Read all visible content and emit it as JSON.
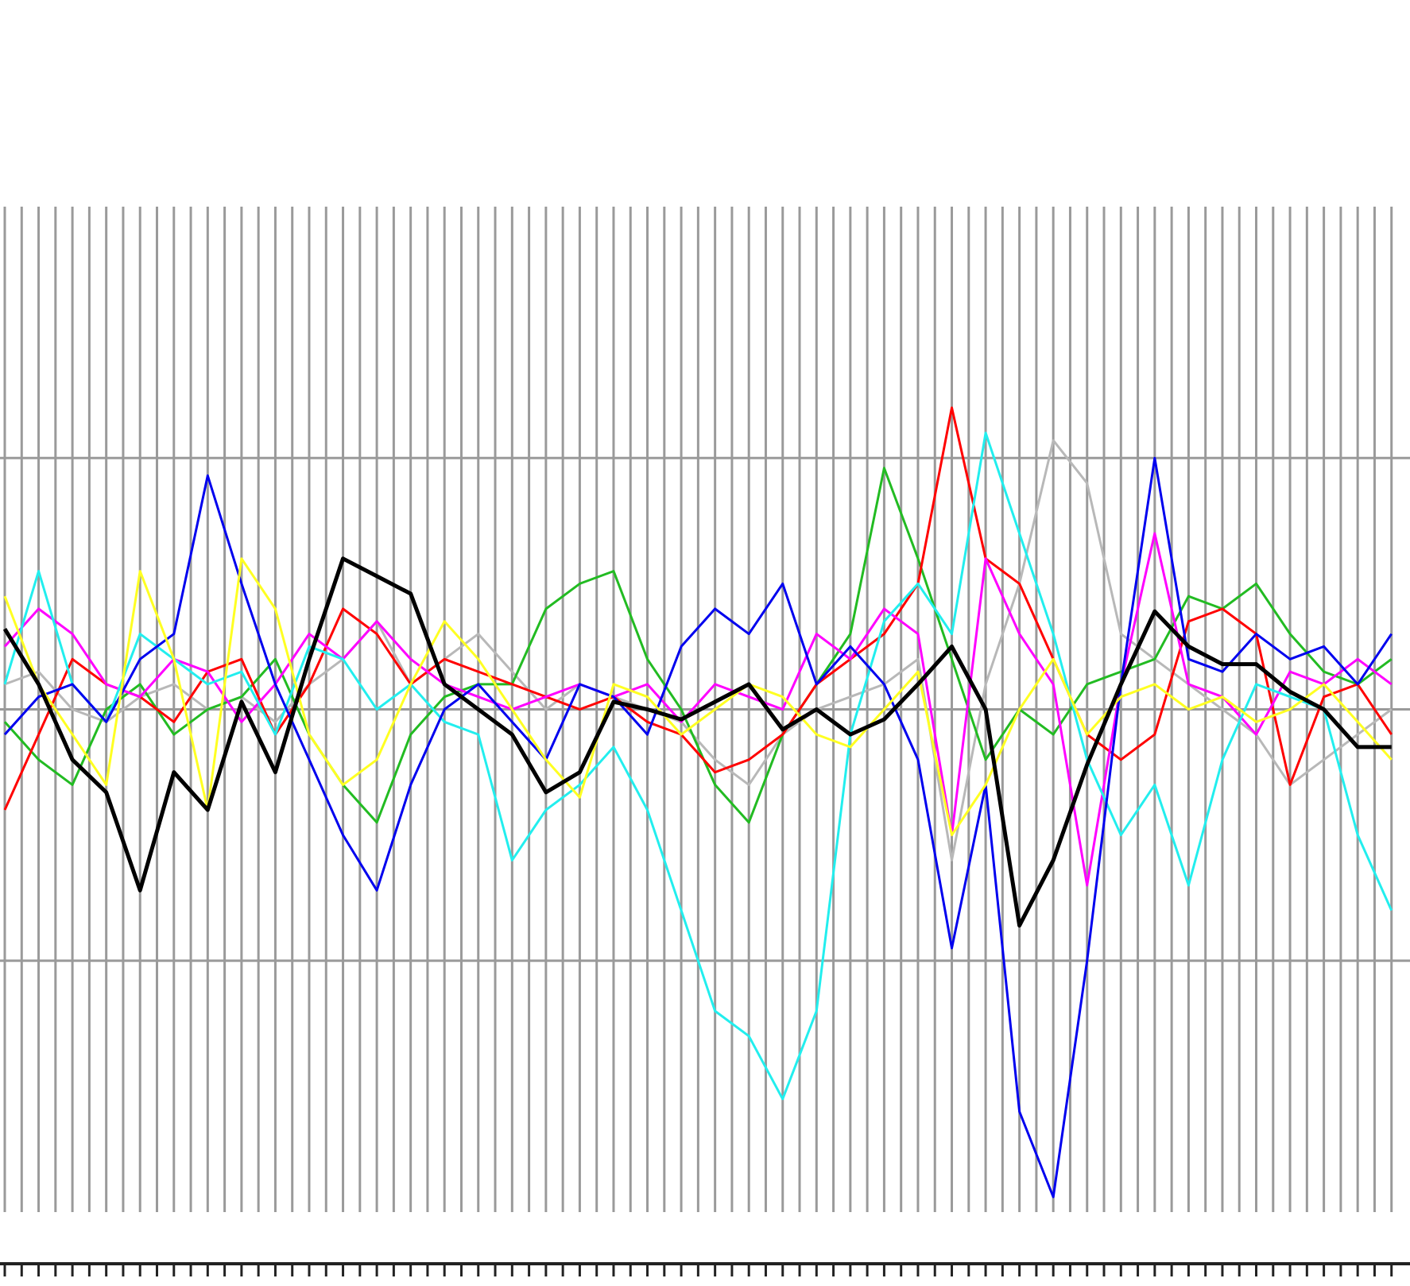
{
  "chart_data": {
    "type": "line",
    "x": [
      0,
      2,
      4,
      6,
      8,
      10,
      12,
      14,
      16,
      18,
      20,
      22,
      24,
      26,
      28,
      30,
      32,
      34,
      36,
      38,
      40,
      42,
      44,
      46,
      48,
      50,
      52,
      54,
      56,
      58,
      60,
      62,
      64,
      66,
      68,
      70,
      72,
      74,
      76,
      78,
      80,
      82
    ],
    "xlim": [
      0,
      83
    ],
    "ylim": [
      -2,
      2
    ],
    "xticks": [
      0,
      1,
      2,
      3,
      4,
      5,
      6,
      7,
      8,
      9,
      10,
      11,
      12,
      13,
      14,
      15,
      16,
      17,
      18,
      19,
      20,
      21,
      22,
      23,
      24,
      25,
      26,
      27,
      28,
      29,
      30,
      31,
      32,
      33,
      34,
      35,
      36,
      37,
      38,
      39,
      40,
      41,
      42,
      43,
      44,
      45,
      46,
      47,
      48,
      49,
      50,
      51,
      52,
      53,
      54,
      55,
      56,
      57,
      58,
      59,
      60,
      61,
      62,
      63,
      64,
      65,
      66,
      67,
      68,
      69,
      70,
      71,
      72,
      73,
      74,
      75,
      76,
      77,
      78,
      79,
      80,
      81,
      82
    ],
    "yticks": [
      -1,
      0,
      1
    ],
    "grid": true,
    "series": [
      {
        "color": "#b8b8b8",
        "line_width": 3,
        "values": [
          0.1,
          0.15,
          0,
          -0.05,
          0.05,
          0.1,
          0,
          0.05,
          -0.05,
          0.1,
          0.2,
          0.35,
          0.1,
          0.2,
          0.3,
          0.15,
          0,
          0.1,
          0.05,
          0,
          -0.05,
          -0.2,
          -0.3,
          -0.1,
          0,
          0.05,
          0.1,
          0.2,
          -0.6,
          0.1,
          0.5,
          1.07,
          0.9,
          0.3,
          0.2,
          0.1,
          0,
          -0.1,
          -0.3,
          -0.2,
          -0.1,
          0
        ]
      },
      {
        "color": "#22bb22",
        "line_width": 3,
        "values": [
          -0.05,
          -0.2,
          -0.3,
          0,
          0.1,
          -0.1,
          0,
          0.05,
          0.2,
          -0.1,
          -0.3,
          -0.45,
          -0.1,
          0.05,
          0.1,
          0.1,
          0.4,
          0.5,
          0.55,
          0.2,
          0,
          -0.3,
          -0.45,
          -0.1,
          0.1,
          0.3,
          0.96,
          0.6,
          0.2,
          -0.2,
          0,
          -0.1,
          0.1,
          0.15,
          0.2,
          0.45,
          0.4,
          0.5,
          0.3,
          0.15,
          0.1,
          0.2
        ]
      },
      {
        "color": "#ff0000",
        "line_width": 3,
        "values": [
          -0.4,
          -0.1,
          0.2,
          0.1,
          0.05,
          -0.05,
          0.15,
          0.2,
          -0.1,
          0.1,
          0.4,
          0.3,
          0.1,
          0.2,
          0.15,
          0.1,
          0.05,
          0,
          0.05,
          -0.05,
          -0.1,
          -0.25,
          -0.2,
          -0.1,
          0.1,
          0.2,
          0.3,
          0.5,
          1.2,
          0.6,
          0.5,
          0.2,
          -0.1,
          -0.2,
          -0.1,
          0.35,
          0.4,
          0.3,
          -0.3,
          0.05,
          0.1,
          -0.1
        ]
      },
      {
        "color": "#ff00ff",
        "line_width": 3,
        "values": [
          0.25,
          0.4,
          0.3,
          0.1,
          0.05,
          0.2,
          0.15,
          -0.05,
          0.1,
          0.3,
          0.2,
          0.35,
          0.2,
          0.1,
          0.05,
          0,
          0.05,
          0.1,
          0.05,
          0.1,
          -0.05,
          0.1,
          0.05,
          0,
          0.3,
          0.2,
          0.4,
          0.3,
          -0.5,
          0.6,
          0.3,
          0.1,
          -0.7,
          0.1,
          0.7,
          0.1,
          0.05,
          -0.1,
          0.15,
          0.1,
          0.2,
          0.1
        ]
      },
      {
        "color": "#22eeee",
        "line_width": 3,
        "values": [
          0.1,
          0.55,
          0.1,
          -0.05,
          0.3,
          0.2,
          0.1,
          0.15,
          -0.1,
          0.25,
          0.2,
          0,
          0.1,
          -0.05,
          -0.1,
          -0.6,
          -0.4,
          -0.3,
          -0.15,
          -0.4,
          -0.8,
          -1.2,
          -1.3,
          -1.55,
          -1.2,
          -0.1,
          0.35,
          0.5,
          0.3,
          1.1,
          0.7,
          0.3,
          -0.2,
          -0.5,
          -0.3,
          -0.7,
          -0.2,
          0.1,
          0.05,
          0,
          -0.5,
          -0.8
        ]
      },
      {
        "color": "#0000ee",
        "line_width": 3,
        "values": [
          -0.1,
          0.05,
          0.1,
          -0.05,
          0.2,
          0.3,
          0.93,
          0.5,
          0.1,
          -0.2,
          -0.5,
          -0.72,
          -0.3,
          0,
          0.1,
          -0.05,
          -0.2,
          0.1,
          0.05,
          -0.1,
          0.25,
          0.4,
          0.3,
          0.5,
          0.1,
          0.25,
          0.1,
          -0.2,
          -0.95,
          -0.3,
          -1.6,
          -1.94,
          -1.0,
          0.1,
          1.0,
          0.2,
          0.15,
          0.3,
          0.2,
          0.25,
          0.1,
          0.3
        ]
      },
      {
        "color": "#ffff22",
        "line_width": 3,
        "values": [
          0.45,
          0.1,
          -0.1,
          -0.3,
          0.55,
          0.2,
          -0.4,
          0.6,
          0.4,
          -0.1,
          -0.3,
          -0.2,
          0.1,
          0.35,
          0.2,
          0,
          -0.2,
          -0.35,
          0.1,
          0.05,
          -0.1,
          0,
          0.1,
          0.05,
          -0.1,
          -0.15,
          0,
          0.15,
          -0.5,
          -0.3,
          0,
          0.2,
          -0.1,
          0.05,
          0.1,
          0,
          0.05,
          -0.05,
          0,
          0.1,
          -0.05,
          -0.2
        ]
      },
      {
        "color": "#000000",
        "line_width": 5,
        "values": [
          0.32,
          0.1,
          -0.2,
          -0.33,
          -0.72,
          -0.25,
          -0.4,
          0.03,
          -0.25,
          0.2,
          0.6,
          0.53,
          0.46,
          0.1,
          0,
          -0.1,
          -0.33,
          -0.25,
          0.03,
          0,
          -0.04,
          0.03,
          0.1,
          -0.08,
          0,
          -0.1,
          -0.04,
          0.1,
          0.25,
          0,
          -0.86,
          -0.6,
          -0.22,
          0.1,
          0.39,
          0.25,
          0.18,
          0.18,
          0.07,
          0,
          -0.15,
          -0.15
        ]
      }
    ]
  }
}
